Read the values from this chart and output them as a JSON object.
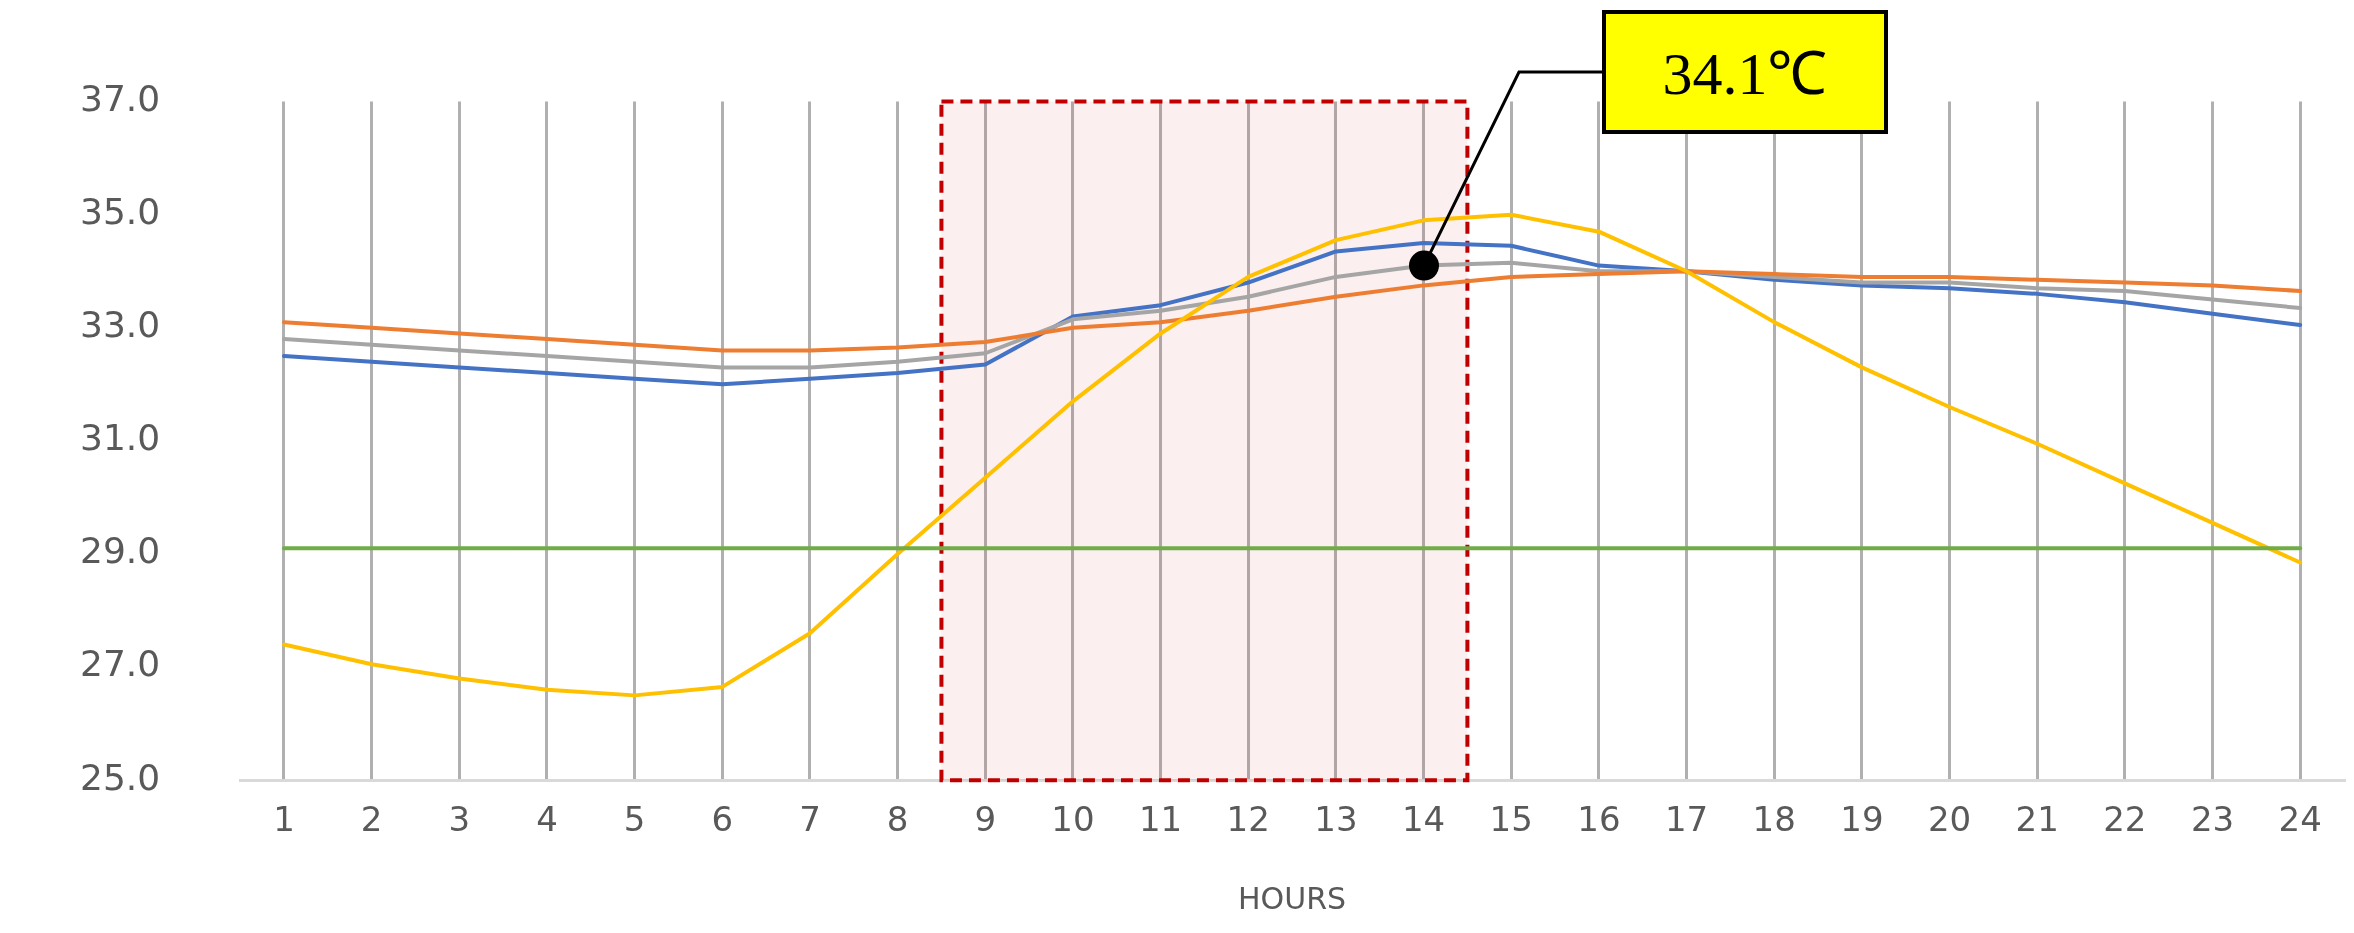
{
  "chart_data": {
    "type": "line",
    "xlabel": "HOURS",
    "x": [
      1,
      2,
      3,
      4,
      5,
      6,
      7,
      8,
      9,
      10,
      11,
      12,
      13,
      14,
      15,
      16,
      17,
      18,
      19,
      20,
      21,
      22,
      23,
      24
    ],
    "series": [
      {
        "color": "#70ad47",
        "values": [
          29.1,
          29.1,
          29.1,
          29.1,
          29.1,
          29.1,
          29.1,
          29.1,
          29.1,
          29.1,
          29.1,
          29.1,
          29.1,
          29.1,
          29.1,
          29.1,
          29.1,
          29.1,
          29.1,
          29.1,
          29.1,
          29.1,
          29.1,
          29.1
        ]
      },
      {
        "color": "#ffc000",
        "values": [
          27.4,
          27.05,
          26.8,
          26.6,
          26.5,
          26.65,
          27.6,
          29.0,
          30.35,
          31.7,
          32.9,
          33.9,
          34.55,
          34.9,
          35.0,
          34.7,
          34.0,
          33.1,
          32.3,
          31.6,
          30.95,
          30.25,
          29.55,
          28.85
        ]
      },
      {
        "color": "#ed7d31",
        "values": [
          33.1,
          33.0,
          32.9,
          32.8,
          32.7,
          32.6,
          32.6,
          32.65,
          32.75,
          33.0,
          33.1,
          33.3,
          33.55,
          33.75,
          33.9,
          33.95,
          34.0,
          33.95,
          33.9,
          33.9,
          33.85,
          33.8,
          33.75,
          33.65
        ]
      },
      {
        "color": "#a5a5a5",
        "values": [
          32.8,
          32.7,
          32.6,
          32.5,
          32.4,
          32.3,
          32.3,
          32.4,
          32.55,
          33.15,
          33.3,
          33.55,
          33.9,
          34.1,
          34.15,
          34.0,
          34.0,
          33.9,
          33.8,
          33.8,
          33.7,
          33.65,
          33.5,
          33.35
        ]
      },
      {
        "color": "#4472c4",
        "values": [
          32.5,
          32.4,
          32.3,
          32.2,
          32.1,
          32.0,
          32.1,
          32.2,
          32.35,
          33.2,
          33.4,
          33.8,
          34.35,
          34.5,
          34.45,
          34.1,
          34.0,
          33.85,
          33.75,
          33.7,
          33.6,
          33.45,
          33.25,
          33.05
        ]
      }
    ],
    "xlim": [
      0.5,
      24.5
    ],
    "xticks": [
      1,
      2,
      3,
      4,
      5,
      6,
      7,
      8,
      9,
      10,
      11,
      12,
      13,
      14,
      15,
      16,
      17,
      18,
      19,
      20,
      21,
      22,
      23,
      24
    ],
    "ylim": [
      25,
      37
    ],
    "yticks": [
      {
        "value": 25,
        "label": "25.0"
      },
      {
        "value": 27,
        "label": "27.0"
      },
      {
        "value": 29,
        "label": "29.0"
      },
      {
        "value": 31,
        "label": "31.0"
      },
      {
        "value": 33,
        "label": "33.0"
      },
      {
        "value": 35,
        "label": "35.0"
      },
      {
        "value": 37,
        "label": "37.0"
      }
    ],
    "bands": [
      {
        "axis": "x",
        "from": 8.5,
        "to": 14.5,
        "color": "#c00000"
      }
    ],
    "annotations": [
      {
        "text": "34.1℃",
        "x": 14,
        "y": 34.1
      }
    ],
    "grid": "x",
    "legend": false,
    "marker": "none",
    "line_style": "solid"
  }
}
